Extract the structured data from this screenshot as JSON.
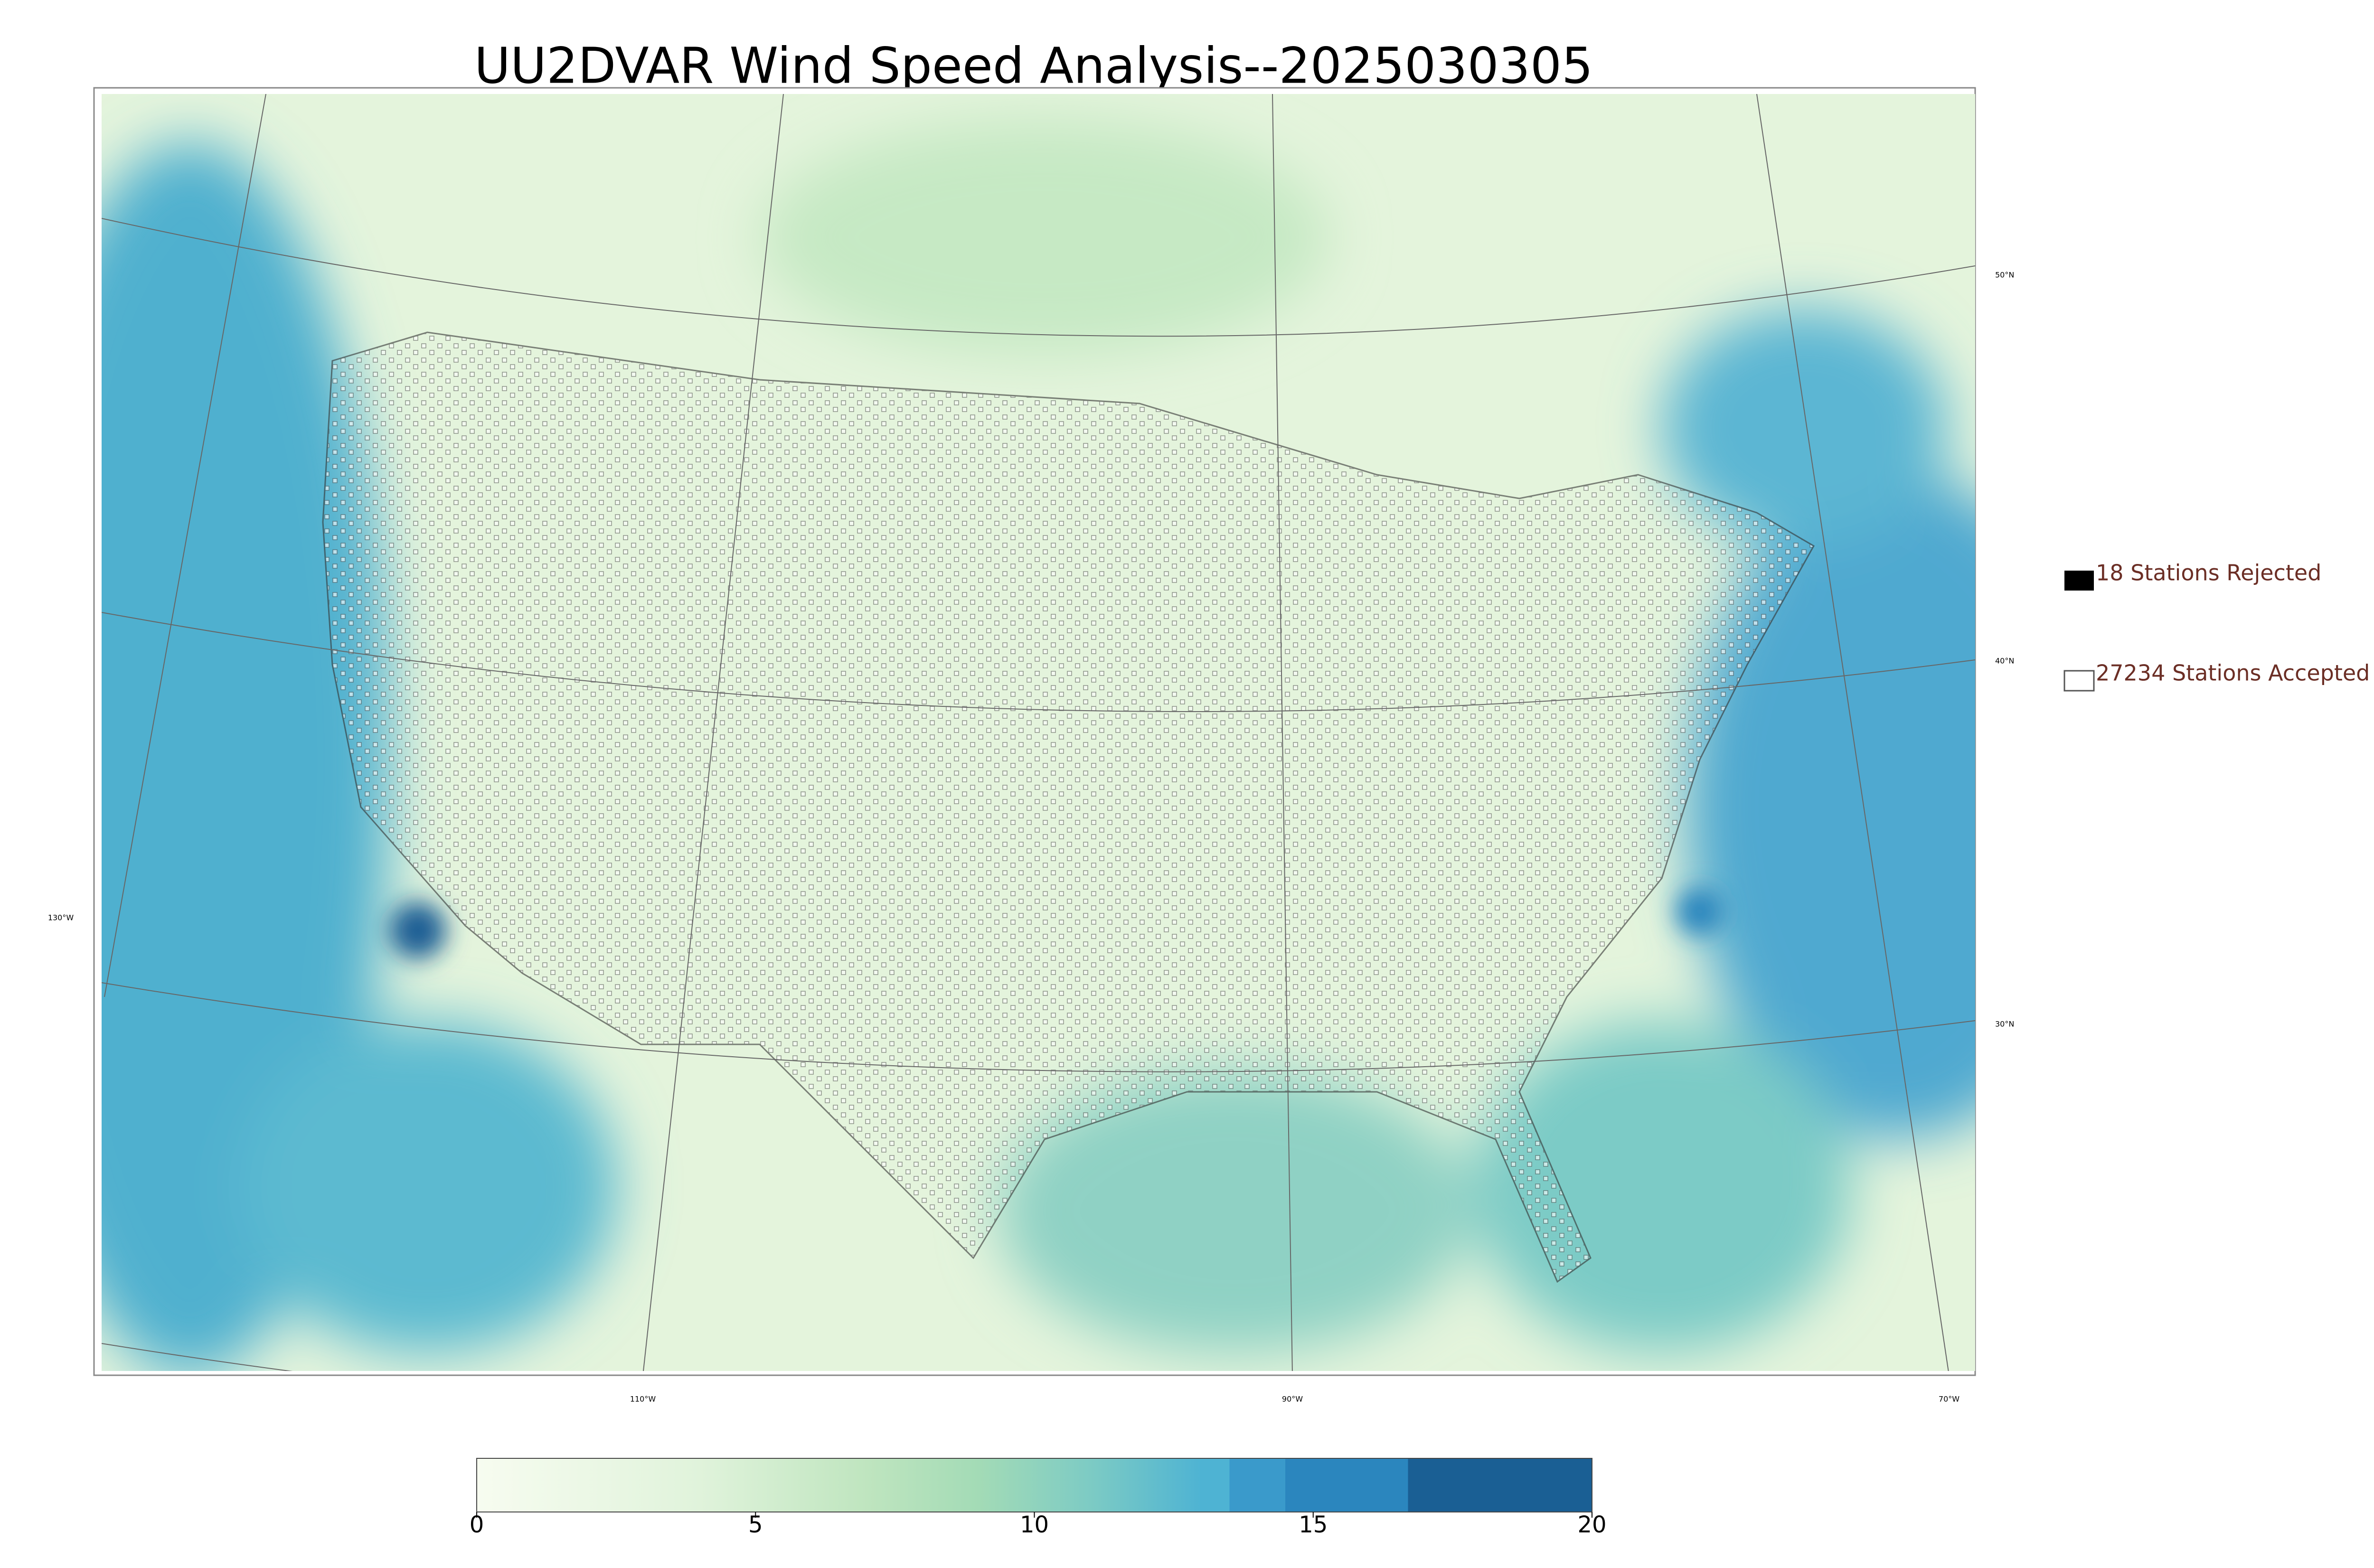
{
  "title": "UU2DVAR Wind Speed Analysis--2025030305",
  "legend": [
    "18 Stations Rejected",
    "27234 Stations Accepted"
  ],
  "graticule": {
    "lat_labels": [
      "50°N",
      "40°N",
      "30°N"
    ],
    "lon_labels": [
      "130°W",
      "110°W",
      "90°W",
      "70°W"
    ]
  },
  "colorbar": {
    "lim": [
      0,
      20
    ],
    "ticks": [
      0,
      5,
      10,
      15,
      20
    ]
  }
}
